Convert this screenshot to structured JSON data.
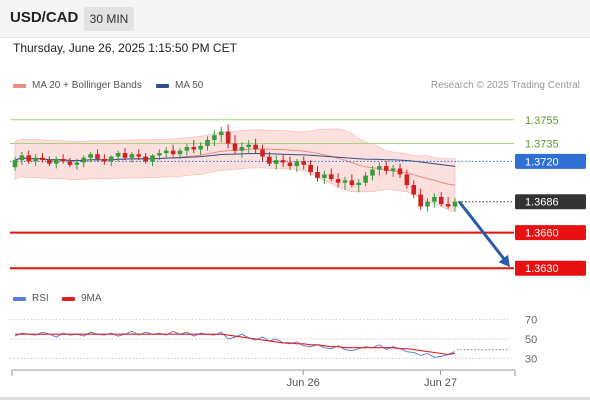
{
  "header": {
    "pair": "USD/CAD",
    "timeframe": "30 MIN"
  },
  "timestamp": "Thursday, June 26, 2025 1:15:50 PM CET",
  "legend": {
    "bollinger": {
      "label": "MA 20 + Bollinger Bands",
      "color": "#f08a85"
    },
    "ma50": {
      "label": "MA 50",
      "color": "#2d4f8c"
    },
    "rsi": {
      "label": "RSI",
      "color": "#5b7fd6"
    },
    "rsi_ma": {
      "label": "9MA",
      "color": "#e02020"
    }
  },
  "credit": "Research © 2025 Trading Central",
  "chart_data": [
    {
      "type": "candlestick",
      "panel": "price",
      "ylim": [
        1.3615,
        1.3775
      ],
      "x_ticks": [
        "Jun 26",
        "Jun 27"
      ],
      "levels": [
        {
          "label": "1.3755",
          "value": 1.3755,
          "style": "resistance",
          "color": "#a8d080"
        },
        {
          "label": "1.3735",
          "value": 1.3735,
          "style": "resistance",
          "color": "#a8d080"
        },
        {
          "label": "1.3720",
          "value": 1.372,
          "style": "pivot",
          "color": "#2f6fd6"
        },
        {
          "label": "1.3686",
          "value": 1.3686,
          "style": "last",
          "color": "#333333"
        },
        {
          "label": "1.3660",
          "value": 1.366,
          "style": "target",
          "color": "#e81010"
        },
        {
          "label": "1.3630",
          "value": 1.363,
          "style": "target",
          "color": "#e81010"
        }
      ],
      "candles": [
        [
          1.3715,
          1.3724,
          1.3712,
          1.3721
        ],
        [
          1.3721,
          1.3728,
          1.3717,
          1.3725
        ],
        [
          1.3725,
          1.3729,
          1.3718,
          1.372
        ],
        [
          1.372,
          1.3726,
          1.3716,
          1.3723
        ],
        [
          1.3723,
          1.3727,
          1.3719,
          1.3721
        ],
        [
          1.3721,
          1.3724,
          1.3716,
          1.3718
        ],
        [
          1.3718,
          1.3724,
          1.3714,
          1.3722
        ],
        [
          1.3722,
          1.3726,
          1.3718,
          1.372
        ],
        [
          1.372,
          1.3723,
          1.3715,
          1.3717
        ],
        [
          1.3717,
          1.3722,
          1.3713,
          1.3719
        ],
        [
          1.3719,
          1.3725,
          1.3715,
          1.3723
        ],
        [
          1.3723,
          1.3728,
          1.3719,
          1.3726
        ],
        [
          1.3726,
          1.373,
          1.372,
          1.3722
        ],
        [
          1.3722,
          1.3726,
          1.3717,
          1.372
        ],
        [
          1.372,
          1.3725,
          1.3716,
          1.3724
        ],
        [
          1.3724,
          1.3729,
          1.372,
          1.3727
        ],
        [
          1.3727,
          1.3731,
          1.3721,
          1.3723
        ],
        [
          1.3723,
          1.3728,
          1.3719,
          1.3726
        ],
        [
          1.3726,
          1.373,
          1.3721,
          1.3724
        ],
        [
          1.3724,
          1.3727,
          1.3718,
          1.372
        ],
        [
          1.372,
          1.3726,
          1.3716,
          1.3725
        ],
        [
          1.3725,
          1.373,
          1.3721,
          1.3727
        ],
        [
          1.3727,
          1.3732,
          1.3723,
          1.3729
        ],
        [
          1.3729,
          1.3734,
          1.3724,
          1.3726
        ],
        [
          1.3726,
          1.3731,
          1.3722,
          1.3729
        ],
        [
          1.3729,
          1.3735,
          1.3725,
          1.3732
        ],
        [
          1.3732,
          1.3738,
          1.3727,
          1.373
        ],
        [
          1.373,
          1.3736,
          1.3725,
          1.3733
        ],
        [
          1.3733,
          1.3741,
          1.3729,
          1.3738
        ],
        [
          1.3738,
          1.3746,
          1.3733,
          1.3742
        ],
        [
          1.3742,
          1.3749,
          1.3736,
          1.3745
        ],
        [
          1.3745,
          1.3751,
          1.3731,
          1.3735
        ],
        [
          1.3735,
          1.3742,
          1.3726,
          1.3729
        ],
        [
          1.3729,
          1.3736,
          1.3723,
          1.3732
        ],
        [
          1.3732,
          1.3738,
          1.3726,
          1.3734
        ],
        [
          1.3734,
          1.3739,
          1.3727,
          1.373
        ],
        [
          1.373,
          1.3734,
          1.372,
          1.3724
        ],
        [
          1.3724,
          1.3728,
          1.3716,
          1.3718
        ],
        [
          1.3718,
          1.3725,
          1.3713,
          1.3721
        ],
        [
          1.3721,
          1.3726,
          1.3715,
          1.3719
        ],
        [
          1.3719,
          1.3724,
          1.3713,
          1.3716
        ],
        [
          1.3716,
          1.3722,
          1.3711,
          1.372
        ],
        [
          1.372,
          1.3724,
          1.3713,
          1.3717
        ],
        [
          1.3717,
          1.3721,
          1.3708,
          1.3711
        ],
        [
          1.3711,
          1.3716,
          1.3703,
          1.3706
        ],
        [
          1.3706,
          1.3712,
          1.3701,
          1.3709
        ],
        [
          1.3709,
          1.3714,
          1.3703,
          1.3705
        ],
        [
          1.3705,
          1.371,
          1.3698,
          1.3702
        ],
        [
          1.3702,
          1.3707,
          1.3696,
          1.3704
        ],
        [
          1.3704,
          1.3709,
          1.3698,
          1.37
        ],
        [
          1.37,
          1.3705,
          1.3694,
          1.3702
        ],
        [
          1.3702,
          1.3711,
          1.3699,
          1.3708
        ],
        [
          1.3708,
          1.3716,
          1.3704,
          1.3713
        ],
        [
          1.3713,
          1.3719,
          1.3708,
          1.3716
        ],
        [
          1.3716,
          1.372,
          1.3709,
          1.3712
        ],
        [
          1.3712,
          1.3717,
          1.3707,
          1.3714
        ],
        [
          1.3714,
          1.3718,
          1.3706,
          1.3709
        ],
        [
          1.3709,
          1.3713,
          1.3697,
          1.37
        ],
        [
          1.37,
          1.3704,
          1.3689,
          1.3692
        ],
        [
          1.3692,
          1.3697,
          1.3679,
          1.3682
        ],
        [
          1.3682,
          1.3689,
          1.3678,
          1.3686
        ],
        [
          1.3686,
          1.3693,
          1.3681,
          1.369
        ],
        [
          1.369,
          1.3694,
          1.3682,
          1.3684
        ],
        [
          1.3684,
          1.369,
          1.368,
          1.3682
        ],
        [
          1.3682,
          1.3689,
          1.3678,
          1.3686
        ]
      ]
    },
    {
      "type": "line",
      "panel": "rsi",
      "ylim": [
        20,
        80
      ],
      "y_ticks": [
        70,
        50,
        30
      ],
      "series": [
        {
          "name": "RSI",
          "values": [
            53,
            56,
            55,
            54,
            57,
            55,
            52,
            56,
            54,
            55,
            53,
            57,
            55,
            54,
            56,
            53,
            55,
            58,
            54,
            57,
            55,
            56,
            54,
            58,
            55,
            57,
            53,
            56,
            55,
            54,
            57,
            50,
            52,
            55,
            51,
            49,
            52,
            48,
            50,
            46,
            45,
            47,
            43,
            42,
            44,
            41,
            40,
            43,
            39,
            38,
            40,
            42,
            41,
            44,
            39,
            42,
            40,
            37,
            36,
            33,
            35,
            31,
            32,
            34,
            37
          ]
        },
        {
          "name": "9MA",
          "values": [
            55,
            55,
            55,
            55,
            55,
            55,
            55,
            55,
            55,
            55,
            55,
            55,
            55,
            55,
            55,
            55,
            55,
            55,
            55,
            55,
            55,
            55,
            55,
            55,
            55,
            55,
            55,
            55,
            55,
            55,
            55,
            54,
            53,
            52,
            51,
            50,
            49,
            48,
            47,
            46,
            46,
            45,
            45,
            44,
            44,
            43,
            42,
            42,
            41,
            41,
            41,
            41,
            41,
            41,
            41,
            41,
            40,
            40,
            39,
            38,
            37,
            36,
            35,
            34,
            35
          ]
        }
      ]
    }
  ]
}
